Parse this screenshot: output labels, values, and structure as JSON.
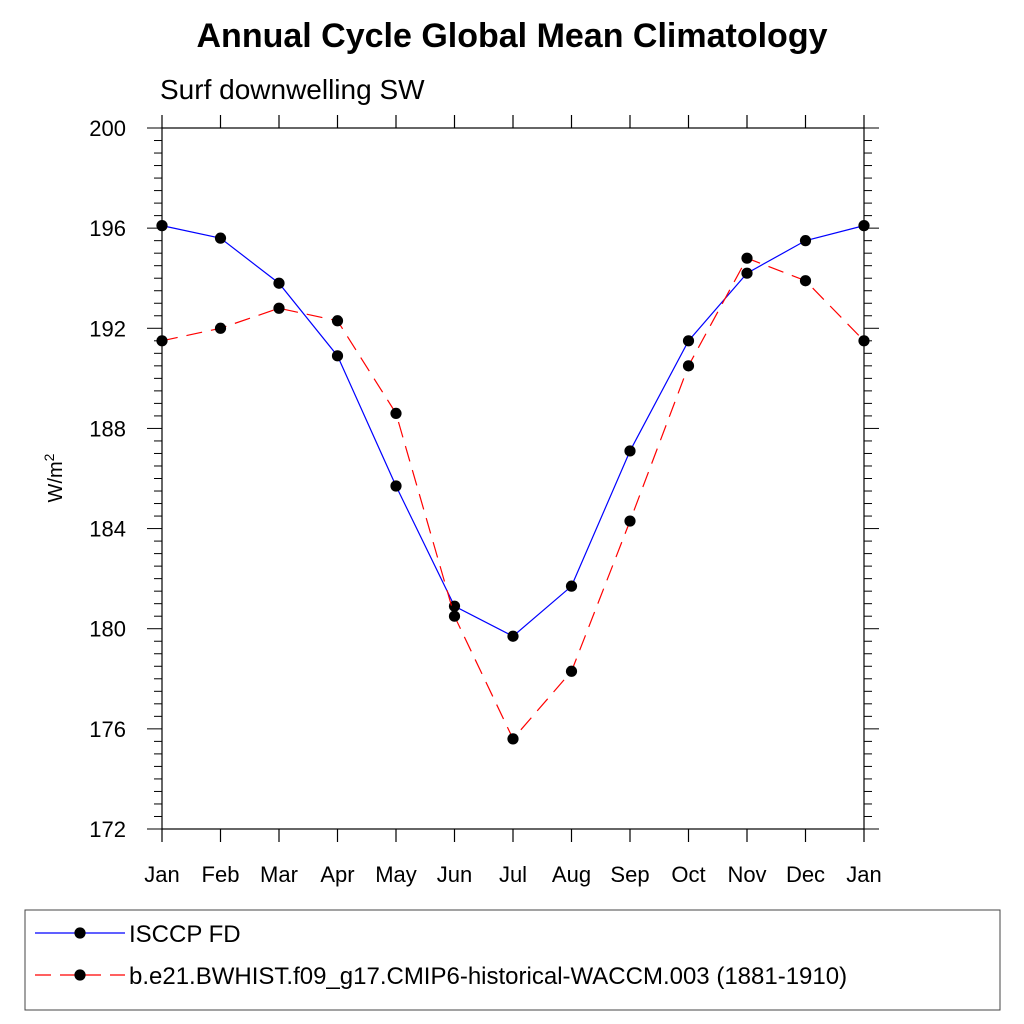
{
  "chart_data": {
    "type": "line",
    "title": "Annual Cycle Global Mean Climatology",
    "subtitle": "Surf downwelling SW",
    "ylabel": "W/m",
    "ylabel_superscript": "2",
    "ylim": [
      172,
      200
    ],
    "y_ticks": [
      "172",
      "176",
      "180",
      "184",
      "188",
      "192",
      "196",
      "200"
    ],
    "categories": [
      "Jan",
      "Feb",
      "Mar",
      "Apr",
      "May",
      "Jun",
      "Jul",
      "Aug",
      "Sep",
      "Oct",
      "Nov",
      "Dec",
      "Jan"
    ],
    "grid": false,
    "legend_position": "bottom",
    "series": [
      {
        "name": "ISCCP FD",
        "color": "#0000ff",
        "dash": "solid",
        "values": [
          196.1,
          195.6,
          193.8,
          190.9,
          185.7,
          180.9,
          179.7,
          181.7,
          187.1,
          191.5,
          194.2,
          195.5,
          196.1
        ]
      },
      {
        "name": "b.e21.BWHIST.f09_g17.CMIP6-historical-WACCM.003 (1881-1910)",
        "color": "#ff0000",
        "dash": "dashed",
        "values": [
          191.5,
          192.0,
          192.8,
          192.3,
          188.6,
          180.5,
          175.6,
          178.3,
          184.3,
          190.5,
          194.8,
          193.9,
          191.5
        ]
      }
    ]
  }
}
